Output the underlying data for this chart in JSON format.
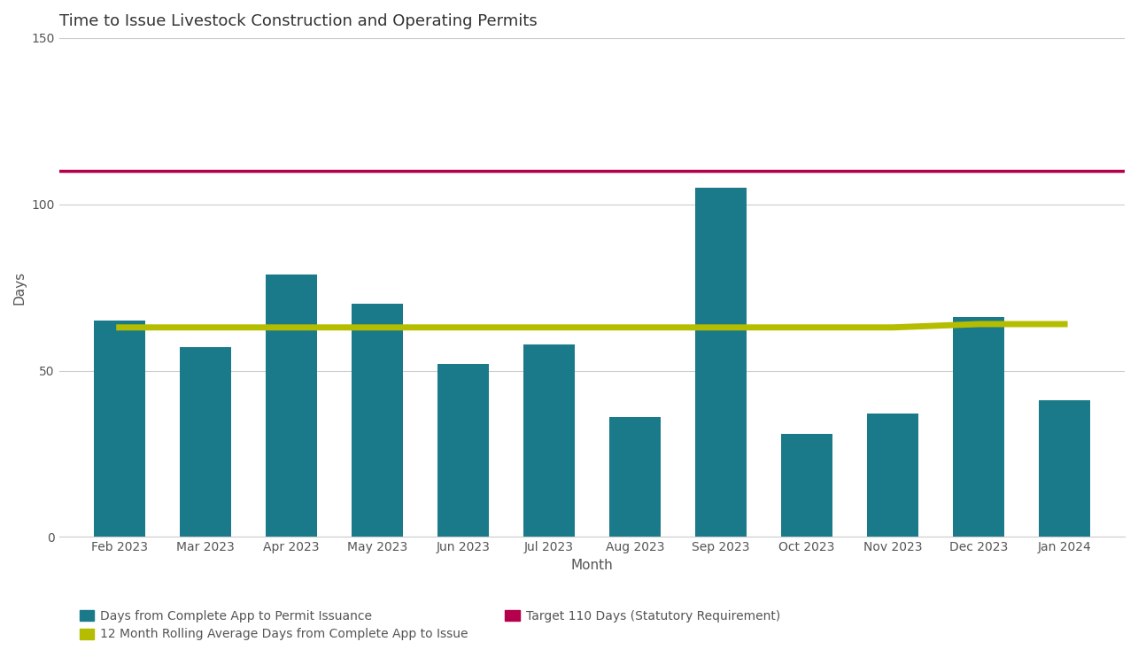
{
  "title": "Time to Issue Livestock Construction and Operating Permits",
  "categories": [
    "Feb 2023",
    "Mar 2023",
    "Apr 2023",
    "May 2023",
    "Jun 2023",
    "Jul 2023",
    "Aug 2023",
    "Sep 2023",
    "Oct 2023",
    "Nov 2023",
    "Dec 2023",
    "Jan 2024"
  ],
  "bar_values": [
    65,
    57,
    79,
    70,
    52,
    58,
    36,
    105,
    31,
    37,
    66,
    41
  ],
  "rolling_avg": [
    63,
    63,
    63,
    63,
    63,
    63,
    63,
    63,
    63,
    63,
    64,
    64
  ],
  "target": 110,
  "bar_color": "#1a7a8a",
  "rolling_avg_color": "#b5bd00",
  "target_color": "#b5004b",
  "xlabel": "Month",
  "ylabel": "Days",
  "ylim": [
    0,
    150
  ],
  "yticks": [
    0,
    50,
    100,
    150
  ],
  "title_fontsize": 13,
  "axis_label_fontsize": 11,
  "tick_fontsize": 10,
  "legend_fontsize": 10,
  "background_color": "#ffffff",
  "legend_bar_label": "Days from Complete App to Permit Issuance",
  "legend_avg_label": "12 Month Rolling Average Days from Complete App to Issue",
  "legend_target_label": "Target 110 Days (Statutory Requirement)"
}
